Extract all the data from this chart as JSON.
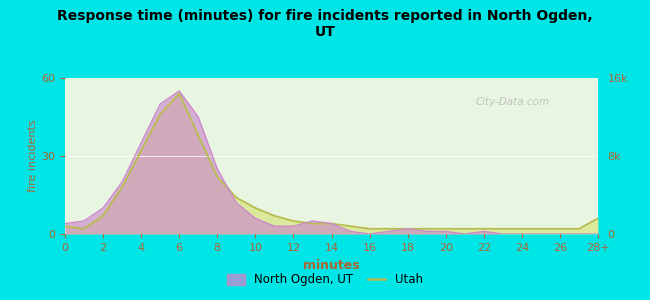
{
  "title": "Response time (minutes) for fire incidents reported in North Ogden,\nUT",
  "xlabel": "minutes",
  "ylabel_left": "fire incidents",
  "bg_color": "#00e5e5",
  "plot_bg_top": "#e8f5e0",
  "plot_bg_bottom": "#f8fff0",
  "x_values": [
    0,
    1,
    2,
    3,
    4,
    5,
    6,
    7,
    8,
    9,
    10,
    11,
    12,
    13,
    14,
    15,
    16,
    17,
    18,
    19,
    20,
    21,
    22,
    23,
    24,
    25,
    26,
    27,
    28
  ],
  "north_ogden_y": [
    4,
    5,
    10,
    20,
    35,
    50,
    55,
    45,
    25,
    12,
    6,
    3,
    3,
    5,
    4,
    1,
    0,
    1,
    2,
    1,
    1,
    0,
    1,
    0,
    0,
    0,
    0,
    0,
    0
  ],
  "utah_y": [
    3,
    2,
    7,
    18,
    32,
    46,
    54,
    38,
    22,
    14,
    10,
    7,
    5,
    4,
    4,
    3,
    2,
    2,
    2,
    2,
    2,
    2,
    2,
    2,
    2,
    2,
    2,
    2,
    6
  ],
  "north_ogden_color": "#cc88cc",
  "north_ogden_fill": "#cc88cc",
  "utah_color": "#b8bc50",
  "utah_fill": "#d8e890",
  "ylim_left": [
    0,
    60
  ],
  "ylim_right": [
    0,
    16000
  ],
  "tick_color": "#aa6633",
  "label_color": "#aa6633",
  "watermark": "City-Data.com",
  "legend_north_ogden": "North Ogden, UT",
  "legend_utah": "Utah"
}
